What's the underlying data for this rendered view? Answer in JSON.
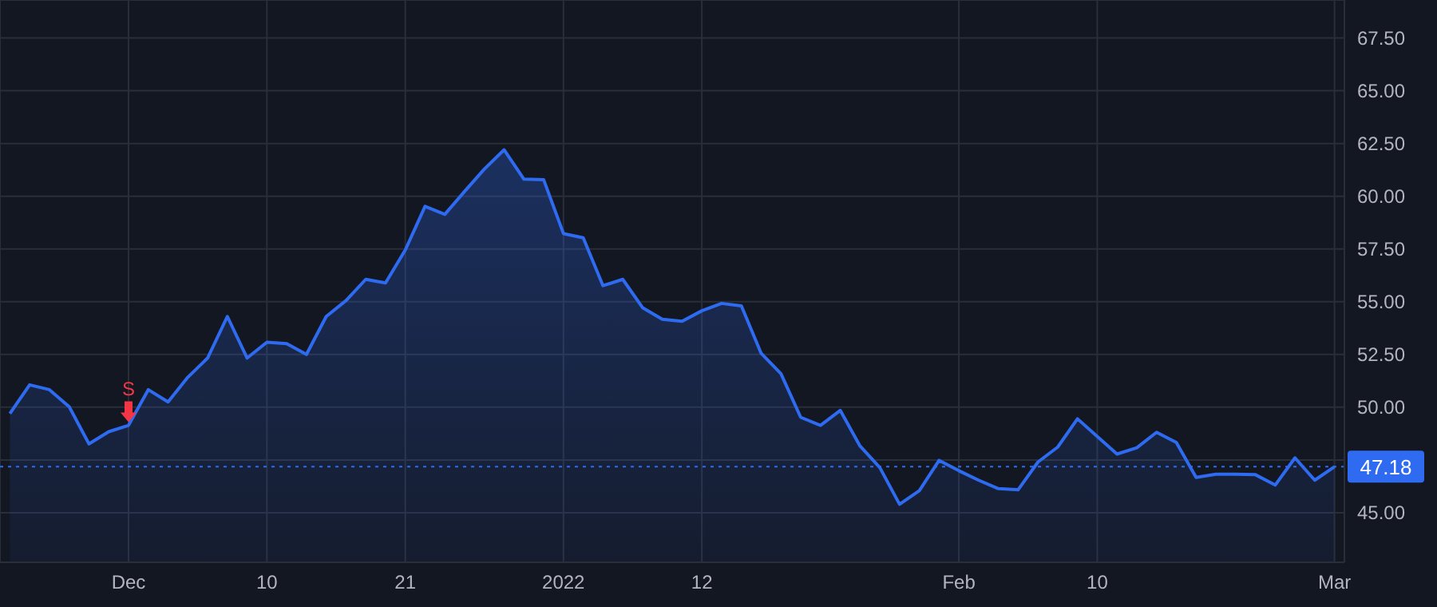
{
  "chart_data": {
    "type": "area",
    "categories": [
      null,
      null,
      null,
      null,
      null,
      null,
      "Dec",
      null,
      null,
      null,
      null,
      null,
      null,
      "10",
      null,
      null,
      null,
      null,
      null,
      null,
      "21",
      null,
      null,
      null,
      null,
      null,
      null,
      null,
      "2022",
      null,
      null,
      null,
      null,
      null,
      null,
      "12",
      null,
      null,
      null,
      null,
      null,
      null,
      null,
      null,
      null,
      null,
      null,
      null,
      "Feb",
      null,
      null,
      null,
      null,
      null,
      null,
      "10",
      null,
      null,
      null,
      null,
      null,
      null,
      null,
      null,
      null,
      null,
      null,
      "Mar"
    ],
    "series": [
      {
        "color": "#2f6bf0",
        "values": [
          49.7,
          51.06,
          50.83,
          50.02,
          48.26,
          48.84,
          49.14,
          50.83,
          50.25,
          51.42,
          52.33,
          54.3,
          52.33,
          53.08,
          53.01,
          52.5,
          54.3,
          55.05,
          56.06,
          55.89,
          57.45,
          59.52,
          59.14,
          60.23,
          61.29,
          62.2,
          60.81,
          60.78,
          58.23,
          58.03,
          55.76,
          56.06,
          54.72,
          54.17,
          54.07,
          54.57,
          54.92,
          54.8,
          52.55,
          51.59,
          49.52,
          49.14,
          49.85,
          48.16,
          47.14,
          45.4,
          46.04,
          47.48,
          46.99,
          46.54,
          46.14,
          46.09,
          47.4,
          48.11,
          49.45,
          48.61,
          47.78,
          48.08,
          48.81,
          48.33,
          46.67,
          46.82,
          46.82,
          46.8,
          46.31,
          47.6,
          46.54,
          47.18
        ]
      }
    ],
    "ylim": [
      42.65,
      69.3
    ],
    "yticks": [
      {
        "value": 45,
        "label": "45.00"
      },
      {
        "value": 47.5,
        "label": null
      },
      {
        "value": 50,
        "label": "50.00"
      },
      {
        "value": 52.5,
        "label": "52.50"
      },
      {
        "value": 55,
        "label": "55.00"
      },
      {
        "value": 57.5,
        "label": "57.50"
      },
      {
        "value": 60,
        "label": "60.00"
      },
      {
        "value": 62.5,
        "label": "62.50"
      },
      {
        "value": 65,
        "label": "65.00"
      },
      {
        "value": 67.5,
        "label": "67.50"
      }
    ],
    "grid": true,
    "legend": false,
    "ref_lines": [
      {
        "axis": "y",
        "value": 47.18,
        "label": "47.18",
        "color": "#2f6bf0",
        "line_style": "dotted"
      }
    ],
    "annotations": [
      {
        "text": "S",
        "x": "Dec",
        "y": 49.14
      }
    ]
  }
}
